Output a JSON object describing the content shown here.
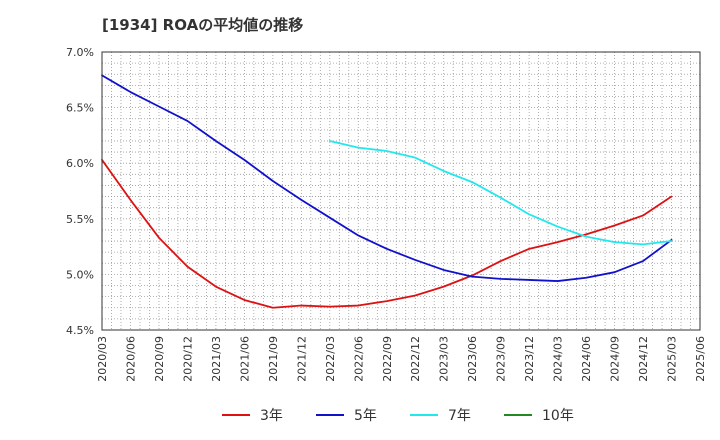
{
  "chart_data": {
    "type": "line",
    "title": "[1934]  ROAの平均値の推移",
    "xlabel": "",
    "ylabel": "",
    "ylim": [
      4.5,
      7.0
    ],
    "yticks": [
      "7.0%",
      "6.5%",
      "6.0%",
      "5.5%",
      "5.0%",
      "4.5%"
    ],
    "ytick_values": [
      7.0,
      6.5,
      6.0,
      5.5,
      5.0,
      4.5
    ],
    "categories": [
      "2020/03",
      "2020/06",
      "2020/09",
      "2020/12",
      "2021/03",
      "2021/06",
      "2021/09",
      "2021/12",
      "2022/03",
      "2022/06",
      "2022/09",
      "2022/12",
      "2023/03",
      "2023/06",
      "2023/09",
      "2023/12",
      "2024/03",
      "2024/06",
      "2024/09",
      "2024/12",
      "2025/03",
      "2025/06"
    ],
    "grid": true,
    "legend_position": "bottom",
    "series": [
      {
        "name": "3年",
        "color": "#dd1111",
        "values": [
          6.03,
          5.67,
          5.33,
          5.07,
          4.89,
          4.77,
          4.7,
          4.72,
          4.71,
          4.72,
          4.76,
          4.81,
          4.89,
          4.99,
          5.12,
          5.23,
          5.29,
          5.36,
          5.44,
          5.53,
          5.7,
          null
        ]
      },
      {
        "name": "5年",
        "color": "#1111cc",
        "values": [
          6.79,
          6.64,
          6.51,
          6.38,
          6.2,
          6.03,
          5.84,
          5.67,
          5.51,
          5.35,
          5.23,
          5.13,
          5.04,
          4.98,
          4.96,
          4.95,
          4.94,
          4.97,
          5.02,
          5.12,
          5.31,
          null
        ]
      },
      {
        "name": "7年",
        "color": "#22e8ee",
        "values": [
          null,
          null,
          null,
          null,
          null,
          null,
          null,
          null,
          6.2,
          6.14,
          6.11,
          6.05,
          5.93,
          5.83,
          5.69,
          5.54,
          5.43,
          5.34,
          5.29,
          5.27,
          5.3,
          null
        ]
      },
      {
        "name": "10年",
        "color": "#228822",
        "values": [
          null,
          null,
          null,
          null,
          null,
          null,
          null,
          null,
          null,
          null,
          null,
          null,
          null,
          null,
          null,
          null,
          null,
          null,
          null,
          null,
          null,
          null
        ]
      }
    ]
  }
}
